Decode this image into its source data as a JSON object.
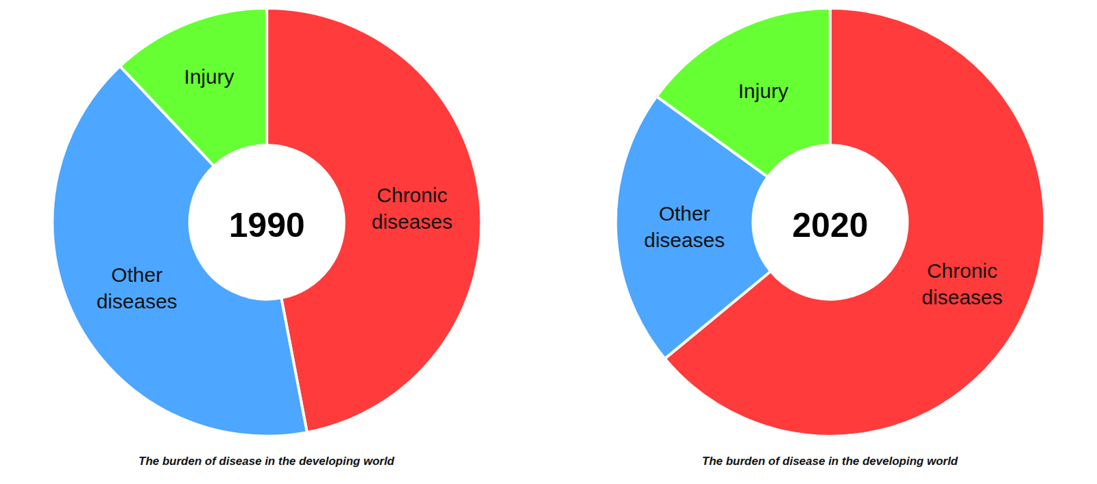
{
  "chart_data": [
    {
      "type": "pie",
      "title": "1990",
      "categories": [
        "Chronic diseases",
        "Other diseases",
        "Injury"
      ],
      "values": [
        47,
        41,
        12
      ],
      "colors": [
        "#ff3b3b",
        "#4da6ff",
        "#66ff33"
      ],
      "annotations": [
        "The burden of disease in the developing world"
      ]
    },
    {
      "type": "pie",
      "title": "2020",
      "categories": [
        "Chronic diseases",
        "Other diseases",
        "Injury"
      ],
      "values": [
        64,
        21,
        15
      ],
      "colors": [
        "#ff3b3b",
        "#4da6ff",
        "#66ff33"
      ],
      "annotations": [
        "The burden of disease in the developing world"
      ]
    }
  ]
}
